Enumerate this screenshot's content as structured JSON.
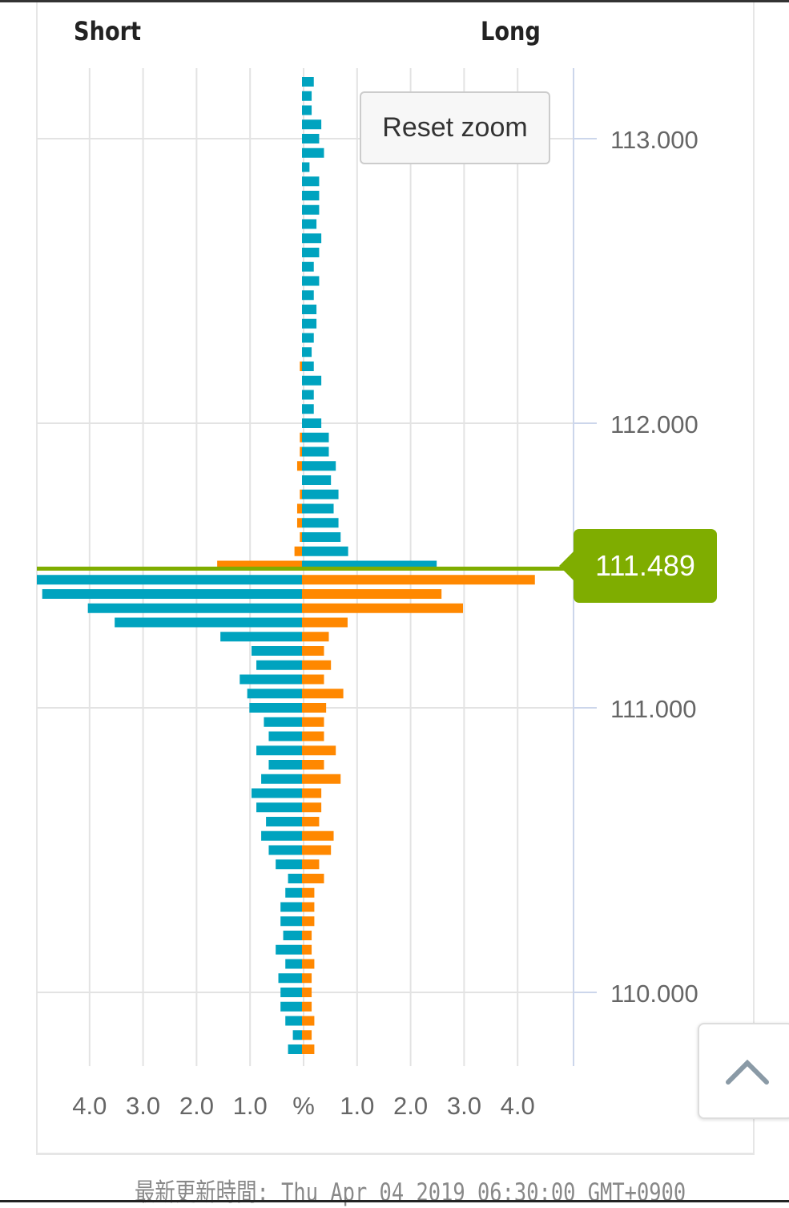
{
  "header": {
    "short_label": "Short",
    "long_label": "Long"
  },
  "reset_zoom_label": "Reset zoom",
  "current_price_label": "111.489",
  "footer_text": "最新更新時間: Thu Apr 04 2019 06:30:00 GMT+0900",
  "colors": {
    "blue": "#00a3bf",
    "orange": "#ff8800",
    "price_line": "#7fad00"
  },
  "scroll_top_icon": "chevron-up-icon",
  "chart_data": {
    "type": "bar",
    "orientation": "horizontal-diverging",
    "current_price": 111.489,
    "y_ticks": [
      "113.000",
      "112.000",
      "111.000",
      "110.000"
    ],
    "y_tick_values": [
      113,
      112,
      111,
      110
    ],
    "x_ticks": [
      {
        "label": "4.0",
        "value": -4
      },
      {
        "label": "3.0",
        "value": -3
      },
      {
        "label": "2.0",
        "value": -2
      },
      {
        "label": "1.0",
        "value": -1
      },
      {
        "label": "%",
        "value": 0
      },
      {
        "label": "1.0",
        "value": 1
      },
      {
        "label": "2.0",
        "value": 2
      },
      {
        "label": "3.0",
        "value": 3
      },
      {
        "label": "4.0",
        "value": 4
      }
    ],
    "xlabel": "%",
    "ylim": [
      109.75,
      113.25
    ],
    "grid": true,
    "rows": [
      {
        "price": 113.2,
        "short": 0,
        "long": 0.22
      },
      {
        "price": 113.15,
        "short": 0,
        "long": 0.18
      },
      {
        "price": 113.1,
        "short": 0,
        "long": 0.18
      },
      {
        "price": 113.05,
        "short": 0,
        "long": 0.36
      },
      {
        "price": 113.0,
        "short": 0,
        "long": 0.32
      },
      {
        "price": 112.95,
        "short": 0,
        "long": 0.41
      },
      {
        "price": 112.9,
        "short": 0,
        "long": 0.14
      },
      {
        "price": 112.85,
        "short": 0,
        "long": 0.32
      },
      {
        "price": 112.8,
        "short": 0,
        "long": 0.32
      },
      {
        "price": 112.75,
        "short": 0,
        "long": 0.32
      },
      {
        "price": 112.7,
        "short": 0,
        "long": 0.27
      },
      {
        "price": 112.65,
        "short": 0,
        "long": 0.36
      },
      {
        "price": 112.6,
        "short": 0,
        "long": 0.32
      },
      {
        "price": 112.55,
        "short": 0,
        "long": 0.22
      },
      {
        "price": 112.5,
        "short": 0,
        "long": 0.32
      },
      {
        "price": 112.45,
        "short": 0,
        "long": 0.22
      },
      {
        "price": 112.4,
        "short": 0,
        "long": 0.27
      },
      {
        "price": 112.35,
        "short": 0,
        "long": 0.27
      },
      {
        "price": 112.3,
        "short": 0,
        "long": 0.22
      },
      {
        "price": 112.25,
        "short": 0,
        "long": 0.18
      },
      {
        "price": 112.2,
        "short": 0.04,
        "long": 0.22
      },
      {
        "price": 112.15,
        "short": 0,
        "long": 0.36
      },
      {
        "price": 112.1,
        "short": 0,
        "long": 0.22
      },
      {
        "price": 112.05,
        "short": 0,
        "long": 0.22
      },
      {
        "price": 112.0,
        "short": 0,
        "long": 0.36
      },
      {
        "price": 111.95,
        "short": 0.04,
        "long": 0.5
      },
      {
        "price": 111.9,
        "short": 0.04,
        "long": 0.5
      },
      {
        "price": 111.85,
        "short": 0.09,
        "long": 0.63
      },
      {
        "price": 111.8,
        "short": 0,
        "long": 0.54
      },
      {
        "price": 111.75,
        "short": 0.04,
        "long": 0.68
      },
      {
        "price": 111.7,
        "short": 0.09,
        "long": 0.59
      },
      {
        "price": 111.65,
        "short": 0.09,
        "long": 0.68
      },
      {
        "price": 111.6,
        "short": 0.04,
        "long": 0.72
      },
      {
        "price": 111.55,
        "short": 0.14,
        "long": 0.86
      },
      {
        "price": 111.5,
        "short": 1.58,
        "long": 2.51
      },
      {
        "price": 111.45,
        "short": 4.95,
        "long": 4.34
      },
      {
        "price": 111.4,
        "short": 4.84,
        "long": 2.6
      },
      {
        "price": 111.35,
        "short": 3.99,
        "long": 3.0
      },
      {
        "price": 111.3,
        "short": 3.49,
        "long": 0.85
      },
      {
        "price": 111.25,
        "short": 1.52,
        "long": 0.5
      },
      {
        "price": 111.2,
        "short": 0.94,
        "long": 0.41
      },
      {
        "price": 111.15,
        "short": 0.85,
        "long": 0.54
      },
      {
        "price": 111.1,
        "short": 1.16,
        "long": 0.41
      },
      {
        "price": 111.05,
        "short": 1.02,
        "long": 0.77
      },
      {
        "price": 111.0,
        "short": 0.98,
        "long": 0.45
      },
      {
        "price": 110.95,
        "short": 0.71,
        "long": 0.41
      },
      {
        "price": 110.9,
        "short": 0.62,
        "long": 0.41
      },
      {
        "price": 110.85,
        "short": 0.85,
        "long": 0.63
      },
      {
        "price": 110.8,
        "short": 0.62,
        "long": 0.41
      },
      {
        "price": 110.75,
        "short": 0.76,
        "long": 0.72
      },
      {
        "price": 110.7,
        "short": 0.94,
        "long": 0.36
      },
      {
        "price": 110.65,
        "short": 0.85,
        "long": 0.36
      },
      {
        "price": 110.6,
        "short": 0.67,
        "long": 0.32
      },
      {
        "price": 110.55,
        "short": 0.76,
        "long": 0.59
      },
      {
        "price": 110.5,
        "short": 0.62,
        "long": 0.54
      },
      {
        "price": 110.45,
        "short": 0.49,
        "long": 0.32
      },
      {
        "price": 110.4,
        "short": 0.26,
        "long": 0.41
      },
      {
        "price": 110.35,
        "short": 0.31,
        "long": 0.23
      },
      {
        "price": 110.3,
        "short": 0.4,
        "long": 0.23
      },
      {
        "price": 110.25,
        "short": 0.4,
        "long": 0.23
      },
      {
        "price": 110.2,
        "short": 0.35,
        "long": 0.18
      },
      {
        "price": 110.15,
        "short": 0.49,
        "long": 0.18
      },
      {
        "price": 110.1,
        "short": 0.31,
        "long": 0.23
      },
      {
        "price": 110.05,
        "short": 0.44,
        "long": 0.18
      },
      {
        "price": 110.0,
        "short": 0.4,
        "long": 0.18
      },
      {
        "price": 109.95,
        "short": 0.4,
        "long": 0.18
      },
      {
        "price": 109.9,
        "short": 0.31,
        "long": 0.23
      },
      {
        "price": 109.85,
        "short": 0.17,
        "long": 0.18
      },
      {
        "price": 109.8,
        "short": 0.26,
        "long": 0.23
      }
    ]
  }
}
